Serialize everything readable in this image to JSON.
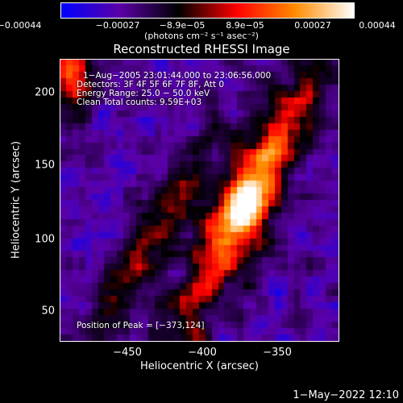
{
  "colorbar": {
    "ticks": [
      "−0.00044",
      "−0.00027",
      "−8.9e−05",
      "8.9e−05",
      "0.00027",
      "0.00044"
    ],
    "values": [
      -0.00044,
      -0.00027,
      -8.9e-05,
      8.9e-05,
      0.00027,
      0.00044
    ],
    "range": [
      -0.00044,
      0.00044
    ],
    "units": "(photons cm⁻² s⁻¹ asec⁻²)",
    "colors": [
      "#0000ff",
      "#5b00a8",
      "#000000",
      "#ff0000",
      "#ff8c00",
      "#ffffff"
    ]
  },
  "chart_data": {
    "type": "heatmap",
    "title": "Reconstructed RHESSI Image",
    "xlabel": "Heliocentric X (arcsec)",
    "ylabel": "Heliocentric Y (arcsec)",
    "xlim": [
      -497,
      -311
    ],
    "ylim": [
      30,
      223
    ],
    "xticks": [
      -450,
      -400,
      -350
    ],
    "xtick_labels": [
      "−450",
      "−400",
      "−350"
    ],
    "yticks": [
      50,
      100,
      150,
      200
    ],
    "ytick_labels": [
      "50",
      "100",
      "150",
      "200"
    ],
    "peak": [
      -373,
      124
    ],
    "annotations": {
      "time_range": "1−Aug−2005 23:01:44.000 to 23:06:56.000",
      "detectors": "Detectors: 3F 4F 5F 6F 7F 8F, Att 0",
      "energy": "Energy Range: 25.0 − 50.0 keV",
      "method": "Clean    Total counts: 9.59E+03",
      "peak_text": "Position of Peak = [−373,124]"
    },
    "grid": false
  },
  "footer": {
    "timestamp": "1−May−2022 12:10"
  }
}
